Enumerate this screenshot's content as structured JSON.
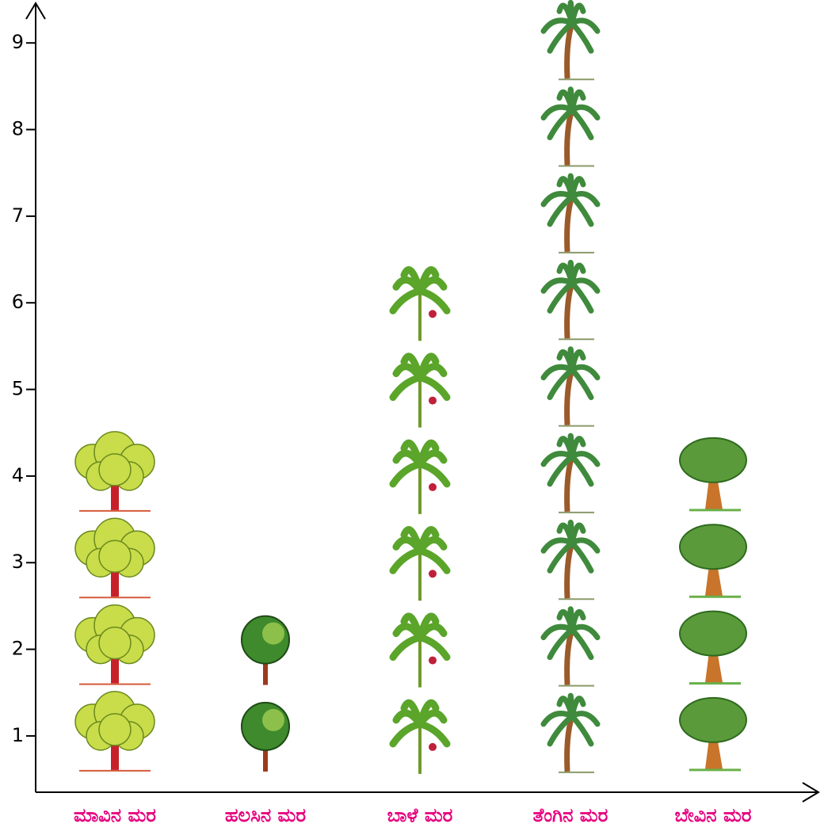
{
  "chart_data": {
    "type": "pictograph",
    "categories": [
      "ಮಾವಿನ ಮರ",
      "ಹಲಸಿನ ಮರ",
      "ಬಾಳೆ ಮರ",
      "ತೆಂಗಿನ ಮರ",
      "ಬೇವಿನ ಮರ"
    ],
    "values": [
      4,
      2,
      6,
      9,
      4
    ],
    "ylim": [
      0.35,
      9.45
    ],
    "yticks": [
      1,
      2,
      3,
      4,
      5,
      6,
      7,
      8,
      9
    ],
    "label_color": "#e6007e"
  }
}
